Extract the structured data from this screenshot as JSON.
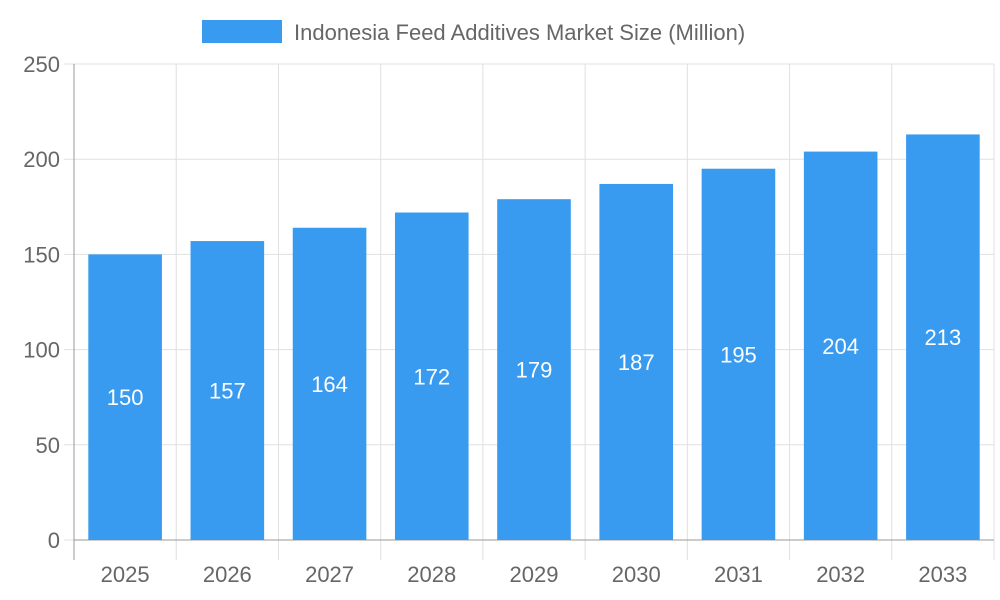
{
  "chart_data": {
    "type": "bar",
    "title": "",
    "xlabel": "",
    "ylabel": "",
    "categories": [
      "2025",
      "2026",
      "2027",
      "2028",
      "2029",
      "2030",
      "2031",
      "2032",
      "2033"
    ],
    "series": [
      {
        "name": "Indonesia Feed Additives Market Size (Million)",
        "values": [
          150,
          157,
          164,
          172,
          179,
          187,
          195,
          204,
          213
        ],
        "color": "#389BF0"
      }
    ],
    "ylim": [
      0,
      250
    ],
    "yticks": [
      0,
      50,
      100,
      150,
      200,
      250
    ],
    "grid": true,
    "legend": "top",
    "data_labels": true
  }
}
